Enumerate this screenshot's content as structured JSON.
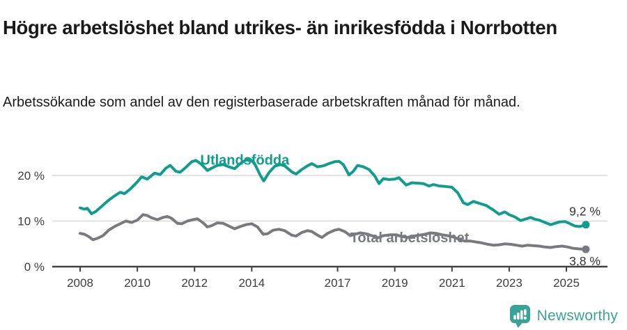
{
  "header": {
    "title": "Högre arbetslöshet bland utrikes- än inrikesfödda i Norrbotten",
    "subtitle": "Arbetssökande som andel av den registerbaserade arbetskraften månad för månad."
  },
  "footer": {
    "brand": "Newsworthy",
    "logo_icon": "newsworthy-speech-bubble-bar-chart-icon"
  },
  "colors": {
    "accent_teal": "#119c8d",
    "series_gray": "#797a7d",
    "grid": "#d9d9d9",
    "axis": "#404040",
    "tick_text": "#3d3d3d",
    "annotation_text": "#333333",
    "logo_teal": "#3ba396"
  },
  "chart_data": {
    "type": "line",
    "title": "Högre arbetslöshet bland utrikes- än inrikesfödda i Norrbotten",
    "subtitle": "Arbetssökande som andel av den registerbaserade arbetskraften månad för månad.",
    "xlabel": "",
    "ylabel": "",
    "grid": "horizontal-only",
    "legend_position": "inline-labels",
    "x_axis": {
      "min": 2008,
      "max": 2026,
      "ticks": [
        2008,
        2010,
        2012,
        2014,
        2017,
        2019,
        2021,
        2023,
        2025
      ],
      "tick_labels": [
        "2008",
        "2010",
        "2012",
        "2014",
        "2017",
        "2019",
        "2021",
        "2023",
        "2025"
      ]
    },
    "y_axis": {
      "min": 0,
      "max": 24,
      "ticks": [
        0,
        10,
        20
      ],
      "tick_labels": [
        "0 %",
        "10 %",
        "20 %"
      ]
    },
    "series": [
      {
        "id": "utlandsfodda",
        "name": "Utlandsfödda",
        "color": "#119c8d",
        "end_label": "9,2 %",
        "end_value": 9.2,
        "end_label_dy": -13,
        "label_pos": [
          2012.2,
          23.2
        ],
        "points": [
          [
            2008.0,
            12.9
          ],
          [
            2008.15,
            12.6
          ],
          [
            2008.25,
            12.8
          ],
          [
            2008.4,
            11.6
          ],
          [
            2008.55,
            12.1
          ],
          [
            2008.75,
            13.2
          ],
          [
            2009.0,
            14.6
          ],
          [
            2009.2,
            15.5
          ],
          [
            2009.4,
            16.3
          ],
          [
            2009.55,
            16.0
          ],
          [
            2009.75,
            17.0
          ],
          [
            2010.0,
            18.6
          ],
          [
            2010.15,
            19.7
          ],
          [
            2010.35,
            19.2
          ],
          [
            2010.6,
            20.5
          ],
          [
            2010.8,
            20.2
          ],
          [
            2011.0,
            21.6
          ],
          [
            2011.15,
            22.2
          ],
          [
            2011.35,
            20.9
          ],
          [
            2011.5,
            20.7
          ],
          [
            2011.7,
            21.8
          ],
          [
            2011.9,
            23.0
          ],
          [
            2012.05,
            23.3
          ],
          [
            2012.25,
            22.4
          ],
          [
            2012.45,
            21.1
          ],
          [
            2012.6,
            21.6
          ],
          [
            2012.8,
            22.2
          ],
          [
            2013.0,
            22.4
          ],
          [
            2013.2,
            21.9
          ],
          [
            2013.4,
            21.5
          ],
          [
            2013.6,
            22.6
          ],
          [
            2013.8,
            23.4
          ],
          [
            2013.95,
            23.5
          ],
          [
            2014.1,
            22.6
          ],
          [
            2014.3,
            20.0
          ],
          [
            2014.42,
            18.8
          ],
          [
            2014.6,
            20.6
          ],
          [
            2014.8,
            22.0
          ],
          [
            2015.0,
            22.4
          ],
          [
            2015.15,
            22.1
          ],
          [
            2015.4,
            20.8
          ],
          [
            2015.55,
            20.3
          ],
          [
            2015.75,
            21.3
          ],
          [
            2015.95,
            22.1
          ],
          [
            2016.1,
            22.6
          ],
          [
            2016.3,
            21.9
          ],
          [
            2016.5,
            22.1
          ],
          [
            2016.7,
            22.6
          ],
          [
            2016.9,
            23.0
          ],
          [
            2017.05,
            23.1
          ],
          [
            2017.2,
            22.4
          ],
          [
            2017.4,
            20.1
          ],
          [
            2017.55,
            20.9
          ],
          [
            2017.7,
            22.2
          ],
          [
            2017.9,
            21.9
          ],
          [
            2018.1,
            21.3
          ],
          [
            2018.3,
            19.9
          ],
          [
            2018.45,
            18.2
          ],
          [
            2018.6,
            19.3
          ],
          [
            2018.8,
            19.1
          ],
          [
            2019.0,
            19.2
          ],
          [
            2019.15,
            19.5
          ],
          [
            2019.4,
            17.9
          ],
          [
            2019.6,
            18.4
          ],
          [
            2019.8,
            18.3
          ],
          [
            2020.0,
            18.2
          ],
          [
            2020.2,
            17.7
          ],
          [
            2020.35,
            18.0
          ],
          [
            2020.55,
            17.7
          ],
          [
            2020.75,
            17.6
          ],
          [
            2021.0,
            17.4
          ],
          [
            2021.2,
            16.2
          ],
          [
            2021.4,
            14.0
          ],
          [
            2021.55,
            13.6
          ],
          [
            2021.75,
            14.3
          ],
          [
            2021.9,
            14.0
          ],
          [
            2022.0,
            13.8
          ],
          [
            2022.2,
            13.4
          ],
          [
            2022.45,
            12.4
          ],
          [
            2022.65,
            11.5
          ],
          [
            2022.85,
            12.0
          ],
          [
            2023.0,
            11.4
          ],
          [
            2023.2,
            10.9
          ],
          [
            2023.4,
            10.1
          ],
          [
            2023.55,
            10.4
          ],
          [
            2023.75,
            10.8
          ],
          [
            2023.9,
            10.4
          ],
          [
            2024.05,
            10.2
          ],
          [
            2024.25,
            9.7
          ],
          [
            2024.45,
            9.2
          ],
          [
            2024.6,
            9.5
          ],
          [
            2024.75,
            9.8
          ],
          [
            2024.95,
            9.9
          ],
          [
            2025.1,
            9.5
          ],
          [
            2025.3,
            8.9
          ],
          [
            2025.45,
            8.8
          ],
          [
            2025.6,
            9.0
          ],
          [
            2025.68,
            9.2
          ]
        ]
      },
      {
        "id": "total",
        "name": "Total arbetslöshet",
        "color": "#797a7d",
        "end_label": "3,8 %",
        "end_value": 3.8,
        "end_label_dy": 23,
        "label_pos": [
          2017.44,
          6.15
        ],
        "points": [
          [
            2008.0,
            7.3
          ],
          [
            2008.15,
            7.1
          ],
          [
            2008.3,
            6.6
          ],
          [
            2008.45,
            5.9
          ],
          [
            2008.6,
            6.2
          ],
          [
            2008.8,
            6.8
          ],
          [
            2009.0,
            8.0
          ],
          [
            2009.2,
            8.8
          ],
          [
            2009.4,
            9.4
          ],
          [
            2009.6,
            10.0
          ],
          [
            2009.8,
            9.7
          ],
          [
            2010.0,
            10.2
          ],
          [
            2010.2,
            11.4
          ],
          [
            2010.35,
            11.2
          ],
          [
            2010.5,
            10.7
          ],
          [
            2010.7,
            10.3
          ],
          [
            2010.9,
            10.8
          ],
          [
            2011.05,
            11.0
          ],
          [
            2011.2,
            10.6
          ],
          [
            2011.4,
            9.5
          ],
          [
            2011.55,
            9.4
          ],
          [
            2011.75,
            10.0
          ],
          [
            2011.95,
            10.3
          ],
          [
            2012.1,
            10.5
          ],
          [
            2012.3,
            9.6
          ],
          [
            2012.45,
            8.7
          ],
          [
            2012.6,
            9.0
          ],
          [
            2012.8,
            9.6
          ],
          [
            2013.0,
            9.5
          ],
          [
            2013.2,
            8.9
          ],
          [
            2013.4,
            8.3
          ],
          [
            2013.6,
            8.8
          ],
          [
            2013.8,
            9.2
          ],
          [
            2014.0,
            9.4
          ],
          [
            2014.2,
            8.7
          ],
          [
            2014.4,
            7.1
          ],
          [
            2014.55,
            7.2
          ],
          [
            2014.75,
            8.0
          ],
          [
            2014.95,
            8.2
          ],
          [
            2015.15,
            7.9
          ],
          [
            2015.4,
            6.9
          ],
          [
            2015.55,
            6.7
          ],
          [
            2015.75,
            7.5
          ],
          [
            2015.95,
            7.9
          ],
          [
            2016.1,
            7.7
          ],
          [
            2016.3,
            6.9
          ],
          [
            2016.45,
            6.4
          ],
          [
            2016.65,
            7.3
          ],
          [
            2016.9,
            8.0
          ],
          [
            2017.05,
            8.2
          ],
          [
            2017.25,
            7.7
          ],
          [
            2017.45,
            6.8
          ],
          [
            2017.6,
            7.1
          ],
          [
            2017.8,
            7.4
          ],
          [
            2018.0,
            7.2
          ],
          [
            2018.2,
            6.8
          ],
          [
            2018.4,
            6.3
          ],
          [
            2018.6,
            6.8
          ],
          [
            2018.85,
            7.0
          ],
          [
            2019.05,
            7.0
          ],
          [
            2019.25,
            6.6
          ],
          [
            2019.45,
            6.4
          ],
          [
            2019.65,
            6.7
          ],
          [
            2019.85,
            6.9
          ],
          [
            2020.05,
            7.1
          ],
          [
            2020.25,
            7.4
          ],
          [
            2020.45,
            7.3
          ],
          [
            2020.65,
            7.0
          ],
          [
            2020.85,
            6.8
          ],
          [
            2021.05,
            6.5
          ],
          [
            2021.25,
            6.0
          ],
          [
            2021.45,
            5.6
          ],
          [
            2021.65,
            5.6
          ],
          [
            2021.85,
            5.4
          ],
          [
            2022.05,
            5.2
          ],
          [
            2022.25,
            4.9
          ],
          [
            2022.45,
            4.7
          ],
          [
            2022.65,
            4.8
          ],
          [
            2022.85,
            5.0
          ],
          [
            2023.05,
            4.9
          ],
          [
            2023.25,
            4.7
          ],
          [
            2023.45,
            4.5
          ],
          [
            2023.65,
            4.7
          ],
          [
            2023.85,
            4.6
          ],
          [
            2024.05,
            4.5
          ],
          [
            2024.25,
            4.3
          ],
          [
            2024.45,
            4.2
          ],
          [
            2024.65,
            4.4
          ],
          [
            2024.85,
            4.5
          ],
          [
            2025.05,
            4.3
          ],
          [
            2025.25,
            4.0
          ],
          [
            2025.45,
            3.9
          ],
          [
            2025.68,
            3.8
          ]
        ]
      }
    ]
  }
}
